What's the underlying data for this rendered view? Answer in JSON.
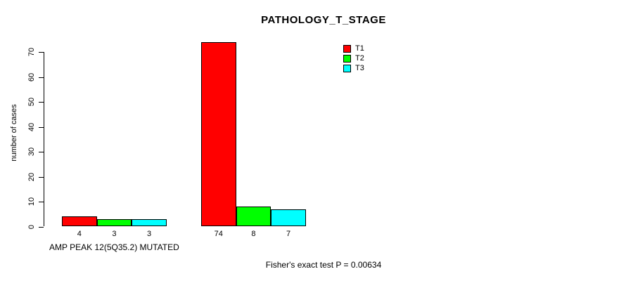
{
  "chart_data": {
    "type": "bar",
    "title": "PATHOLOGY_T_STAGE",
    "xlabel": "",
    "ylabel": "number of cases",
    "ylim": [
      0,
      74
    ],
    "yticks": [
      0,
      10,
      20,
      30,
      40,
      50,
      60,
      70
    ],
    "categories": [
      "AMP PEAK 12(5Q35.2) MUTATED",
      ""
    ],
    "series": [
      {
        "name": "T1",
        "color": "#FF0000",
        "values": [
          4,
          74
        ]
      },
      {
        "name": "T2",
        "color": "#00FF00",
        "values": [
          3,
          8
        ]
      },
      {
        "name": "T3",
        "color": "#00FFFF",
        "values": [
          3,
          7
        ]
      }
    ],
    "bar_labels": [
      [
        4,
        3,
        3
      ],
      [
        74,
        8,
        7
      ]
    ],
    "legend_position": "top-right",
    "grid": false,
    "annotation": "Fisher's exact test P = 0.00634"
  }
}
